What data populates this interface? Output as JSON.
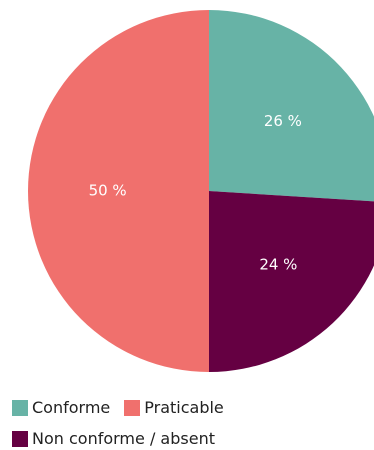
{
  "chart_data": {
    "type": "pie",
    "title": "",
    "categories": [
      "Conforme",
      "Non conforme / absent",
      "Praticable"
    ],
    "values": [
      26,
      24,
      50
    ],
    "value_labels": [
      "26 %",
      "24 %",
      "50 %"
    ],
    "colors": [
      "#67b3a6",
      "#650042",
      "#f0706d"
    ],
    "legend": {
      "position": "bottom-left",
      "rows": [
        [
          {
            "label": "Conforme",
            "color": "#67b3a6"
          },
          {
            "label": "Praticable",
            "color": "#f0706d"
          }
        ],
        [
          {
            "label": "Non conforme / absent",
            "color": "#650042"
          }
        ]
      ]
    }
  }
}
